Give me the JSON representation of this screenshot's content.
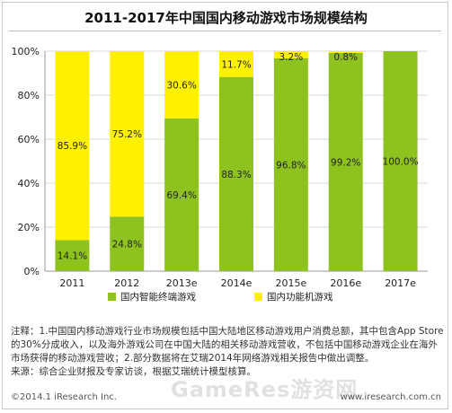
{
  "page": {
    "title": "2011-2017年中国国内移动游戏市场规模结构",
    "notes": [
      "注释：1.中国国内移动游戏行业市场规模包括中国大陆地区移动游戏用户消费总额，其中包含App Store的30%分成收入，以及海外游戏公司在中国大陆的相关移动游戏营收，不包括中国移动游戏企业在海外市场获得的移动游戏营收；2.部分数据将在艾瑞2014年网络游戏相关报告中做出调整。",
      "来源：综合企业财报及专家访谈，根据艾瑞统计模型核算。"
    ],
    "copyright": "©2014.1 iResearch Inc.",
    "site": "www.iresearch.com.cn",
    "watermark": "GameRes游资网"
  },
  "chart_data": {
    "type": "bar",
    "stacked": true,
    "categories": [
      "2011",
      "2012",
      "2013e",
      "2014e",
      "2015e",
      "2016e",
      "2017e"
    ],
    "series": [
      {
        "name": "国内智能终端游戏",
        "color": "#8dc21f",
        "values": [
          14.1,
          24.8,
          69.4,
          88.3,
          96.8,
          99.2,
          100.0
        ]
      },
      {
        "name": "国内功能机游戏",
        "color": "#fff100",
        "values": [
          85.9,
          75.2,
          30.6,
          11.7,
          3.2,
          0.8,
          0
        ]
      }
    ],
    "labels": [
      [
        "14.1%",
        "24.8%",
        "69.4%",
        "88.3%",
        "96.8%",
        "99.2%",
        "100.0%"
      ],
      [
        "85.9%",
        "75.2%",
        "30.6%",
        "11.7%",
        "3.2%",
        "0.8%",
        ""
      ]
    ],
    "ylim": [
      0,
      100
    ],
    "yticks": [
      0,
      20,
      40,
      60,
      80,
      100
    ],
    "ytick_labels": [
      "0%",
      "20%",
      "40%",
      "60%",
      "80%",
      "100%"
    ],
    "grid": true,
    "legend": "bottom"
  }
}
